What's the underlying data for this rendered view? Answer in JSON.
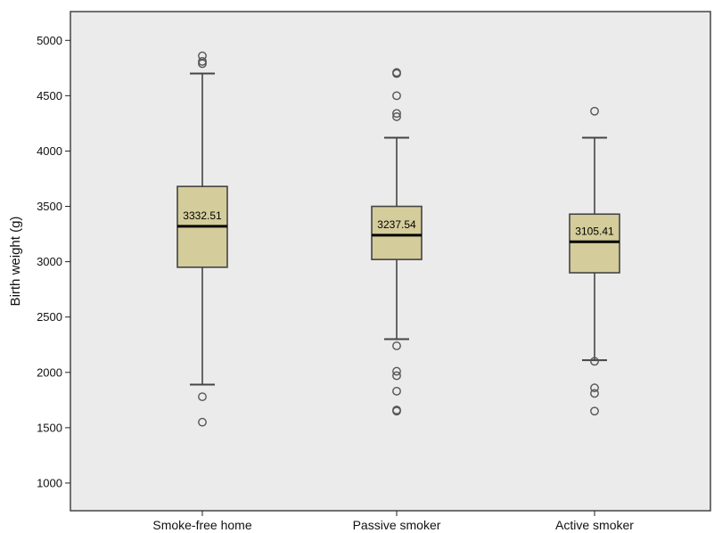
{
  "chart_data": {
    "type": "boxplot",
    "ylabel": "Birth weight (g)",
    "ylim": [
      750,
      5260
    ],
    "yticks": [
      1000,
      1500,
      2000,
      2500,
      3000,
      3500,
      4000,
      4500,
      5000
    ],
    "categories": [
      "Smoke-free home",
      "Passive smoker",
      "Active smoker"
    ],
    "boxes": [
      {
        "category": "Smoke-free home",
        "whisker_low": 1890,
        "q1": 2950,
        "median": 3320,
        "q3": 3680,
        "whisker_high": 4700,
        "label": "3332.51",
        "outliers": [
          1550,
          1780,
          4790,
          4810,
          4860
        ]
      },
      {
        "category": "Passive smoker",
        "whisker_low": 2300,
        "q1": 3020,
        "median": 3240,
        "q3": 3500,
        "whisker_high": 4120,
        "label": "3237.54",
        "outliers": [
          1650,
          1660,
          1830,
          1970,
          2010,
          2240,
          4310,
          4340,
          4500,
          4700,
          4710
        ]
      },
      {
        "category": "Active smoker",
        "whisker_low": 2110,
        "q1": 2900,
        "median": 3180,
        "q3": 3430,
        "whisker_high": 4120,
        "label": "3105.41",
        "outliers": [
          1650,
          1810,
          1860,
          2100,
          4360
        ]
      }
    ],
    "colors": {
      "box_fill": "#d4cc9a",
      "box_stroke": "#444444",
      "background": "#ebebeb",
      "frame": "#444444"
    },
    "grid": false,
    "legend": "none"
  }
}
